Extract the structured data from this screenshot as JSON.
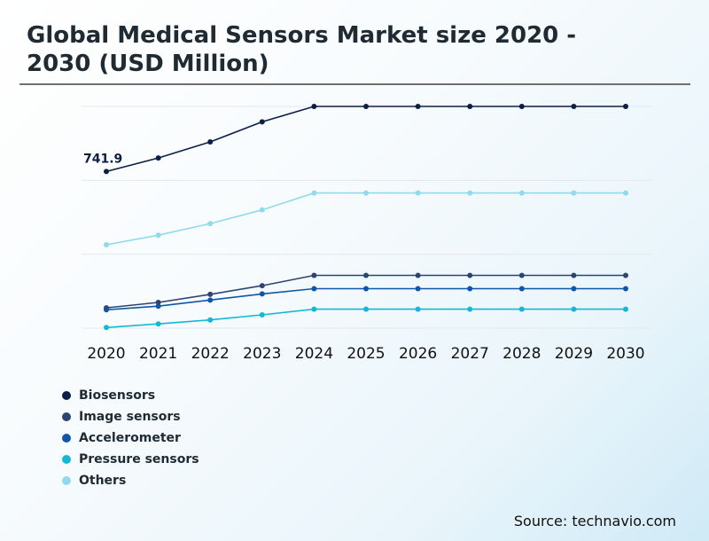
{
  "title": "Global Medical Sensors Market size 2020 - 2030 (USD Million)",
  "source": "Source: technavio.com",
  "chart_data": {
    "type": "line",
    "title": "Global Medical Sensors Market size 2020 - 2030 (USD Million)",
    "xlabel": "",
    "ylabel": "",
    "x": [
      "2020",
      "2021",
      "2022",
      "2023",
      "2024",
      "2025",
      "2026",
      "2027",
      "2028",
      "2029",
      "2030"
    ],
    "ylim": [
      0,
      1050
    ],
    "grid": true,
    "series": [
      {
        "name": "Biosensors",
        "color": "#0b1f46",
        "values": [
          741.9,
          806,
          882,
          977,
          1065,
          1065,
          1065,
          1065,
          1065,
          1065,
          1065
        ]
      },
      {
        "name": "Image sensors",
        "color": "#2e4470",
        "values": [
          96,
          122,
          160,
          201,
          250,
          250,
          250,
          250,
          250,
          250,
          250
        ]
      },
      {
        "name": "Accelerometer",
        "color": "#0f57a6",
        "values": [
          87,
          104,
          133,
          162,
          187,
          187,
          187,
          187,
          187,
          187,
          187
        ]
      },
      {
        "name": "Pressure sensors",
        "color": "#12b8d6",
        "values": [
          3,
          20,
          39,
          63,
          90,
          90,
          90,
          90,
          90,
          90,
          90
        ]
      },
      {
        "name": "Others",
        "color": "#8fdbee",
        "values": [
          395,
          440,
          495,
          560,
          640,
          640,
          640,
          640,
          640,
          640,
          640
        ]
      }
    ],
    "annotations": [
      {
        "series": "Biosensors",
        "x": "2020",
        "label": "741.9"
      }
    ]
  }
}
